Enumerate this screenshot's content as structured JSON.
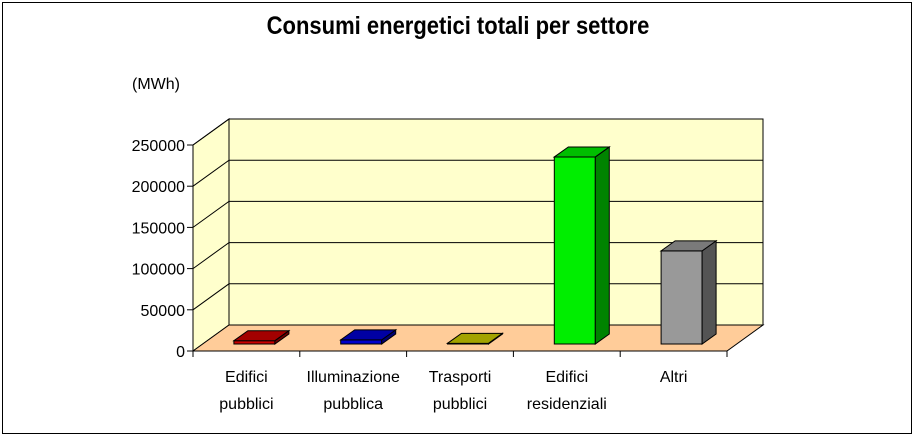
{
  "chart_data": {
    "type": "bar",
    "title": "Consumi energetici totali per settore",
    "ylabel": "(MWh)",
    "xlabel": "",
    "categories": [
      [
        "Edifici",
        "pubblici"
      ],
      [
        "Illuminazione",
        "pubblica"
      ],
      [
        "Trasporti",
        "pubblici"
      ],
      [
        "Edifici",
        "residenziali"
      ],
      [
        "Altri"
      ]
    ],
    "values": [
      4000,
      5000,
      800,
      227000,
      113000
    ],
    "colors": [
      "#cc0000",
      "#0000cc",
      "#cccc00",
      "#00ee00",
      "#999999"
    ],
    "yticks": [
      "0",
      "50000",
      "100000",
      "150000",
      "200000",
      "250000"
    ],
    "ylim": [
      0,
      250000
    ],
    "grid": true,
    "legend": "none",
    "style": "3d-column",
    "wall_color": "#ffffcc",
    "floor_color": "#ffcc99"
  }
}
